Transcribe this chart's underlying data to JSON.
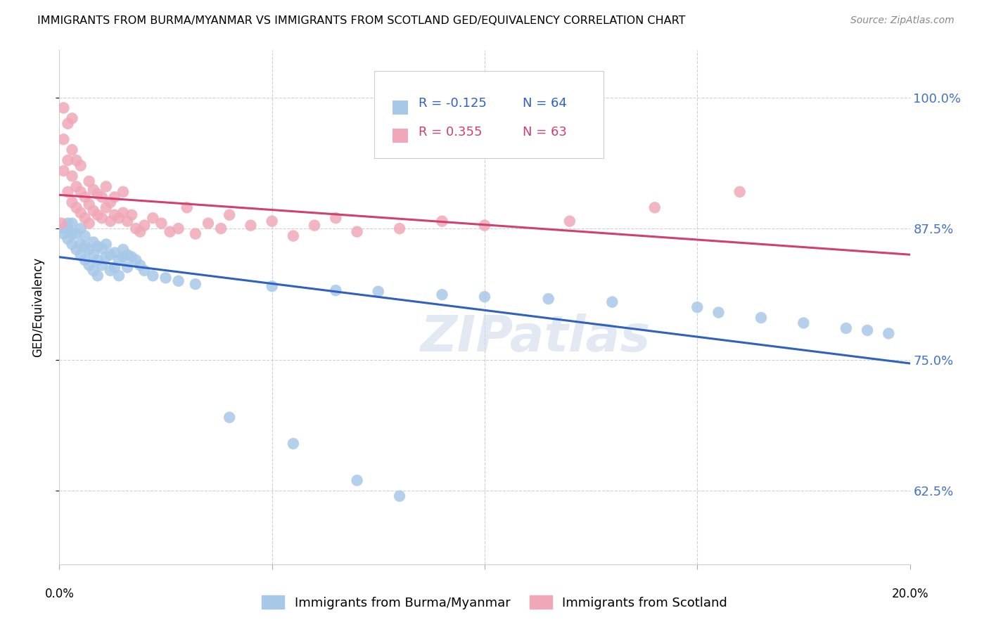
{
  "title": "IMMIGRANTS FROM BURMA/MYANMAR VS IMMIGRANTS FROM SCOTLAND GED/EQUIVALENCY CORRELATION CHART",
  "source": "Source: ZipAtlas.com",
  "ylabel": "GED/Equivalency",
  "yticks": [
    0.625,
    0.75,
    0.875,
    1.0
  ],
  "ytick_labels": [
    "62.5%",
    "75.0%",
    "87.5%",
    "100.0%"
  ],
  "xlim": [
    0.0,
    0.2
  ],
  "ylim": [
    0.555,
    1.045
  ],
  "legend_r_blue": "-0.125",
  "legend_n_blue": "64",
  "legend_r_pink": "0.355",
  "legend_n_pink": "63",
  "blue_color": "#a8c8e8",
  "pink_color": "#f0a8b8",
  "line_blue": "#3060c0",
  "line_pink": "#d04070",
  "watermark": "ZIPatlas",
  "blue_x": [
    0.001,
    0.001,
    0.002,
    0.002,
    0.002,
    0.003,
    0.003,
    0.003,
    0.004,
    0.004,
    0.005,
    0.005,
    0.005,
    0.006,
    0.006,
    0.006,
    0.007,
    0.007,
    0.008,
    0.008,
    0.008,
    0.009,
    0.009,
    0.009,
    0.01,
    0.01,
    0.011,
    0.011,
    0.012,
    0.012,
    0.013,
    0.013,
    0.014,
    0.014,
    0.015,
    0.015,
    0.016,
    0.016,
    0.017,
    0.018,
    0.019,
    0.02,
    0.022,
    0.025,
    0.028,
    0.032,
    0.05,
    0.065,
    0.075,
    0.09,
    0.1,
    0.115,
    0.13,
    0.15,
    0.155,
    0.165,
    0.175,
    0.185,
    0.19,
    0.195,
    0.04,
    0.055,
    0.07,
    0.08
  ],
  "blue_y": [
    0.875,
    0.87,
    0.865,
    0.875,
    0.88,
    0.86,
    0.87,
    0.88,
    0.855,
    0.87,
    0.85,
    0.86,
    0.875,
    0.845,
    0.858,
    0.868,
    0.84,
    0.855,
    0.835,
    0.85,
    0.862,
    0.83,
    0.845,
    0.858,
    0.84,
    0.856,
    0.848,
    0.86,
    0.835,
    0.85,
    0.838,
    0.852,
    0.83,
    0.845,
    0.848,
    0.855,
    0.838,
    0.85,
    0.848,
    0.845,
    0.84,
    0.835,
    0.83,
    0.828,
    0.825,
    0.822,
    0.82,
    0.816,
    0.815,
    0.812,
    0.81,
    0.808,
    0.805,
    0.8,
    0.795,
    0.79,
    0.785,
    0.78,
    0.778,
    0.775,
    0.695,
    0.67,
    0.635,
    0.62
  ],
  "pink_x": [
    0.0005,
    0.001,
    0.001,
    0.001,
    0.002,
    0.002,
    0.002,
    0.003,
    0.003,
    0.003,
    0.003,
    0.004,
    0.004,
    0.004,
    0.005,
    0.005,
    0.005,
    0.006,
    0.006,
    0.007,
    0.007,
    0.007,
    0.008,
    0.008,
    0.009,
    0.009,
    0.01,
    0.01,
    0.011,
    0.011,
    0.012,
    0.012,
    0.013,
    0.013,
    0.014,
    0.015,
    0.015,
    0.016,
    0.017,
    0.018,
    0.019,
    0.02,
    0.022,
    0.024,
    0.026,
    0.028,
    0.03,
    0.032,
    0.035,
    0.038,
    0.04,
    0.045,
    0.05,
    0.055,
    0.06,
    0.065,
    0.07,
    0.08,
    0.09,
    0.1,
    0.12,
    0.14,
    0.16
  ],
  "pink_y": [
    0.88,
    0.93,
    0.96,
    0.99,
    0.91,
    0.94,
    0.975,
    0.9,
    0.925,
    0.95,
    0.98,
    0.895,
    0.915,
    0.94,
    0.89,
    0.91,
    0.935,
    0.885,
    0.905,
    0.88,
    0.898,
    0.92,
    0.892,
    0.912,
    0.888,
    0.908,
    0.885,
    0.905,
    0.895,
    0.915,
    0.882,
    0.9,
    0.888,
    0.905,
    0.885,
    0.89,
    0.91,
    0.882,
    0.888,
    0.875,
    0.872,
    0.878,
    0.885,
    0.88,
    0.872,
    0.875,
    0.895,
    0.87,
    0.88,
    0.875,
    0.888,
    0.878,
    0.882,
    0.868,
    0.878,
    0.885,
    0.872,
    0.875,
    0.882,
    0.878,
    0.882,
    0.895,
    0.91
  ]
}
